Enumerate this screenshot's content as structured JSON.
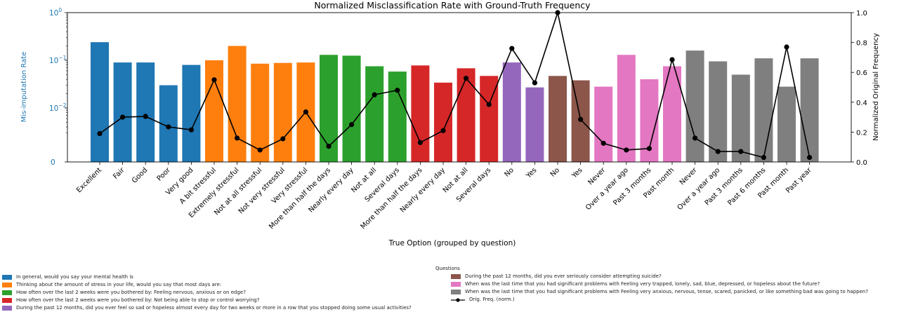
{
  "chart_data": {
    "type": "bar",
    "title": "Normalized Misclassification Rate with Ground-Truth Frequency",
    "xlabel": "True Option (grouped by question)",
    "ylabel": "Mis-imputation Rate",
    "ylabel_right": "Normalized Original Frequency",
    "y_scale": "symlog",
    "yticks": [
      {
        "label": "0",
        "exp": null
      },
      {
        "label": "10",
        "exp": "−2"
      },
      {
        "label": "10",
        "exp": "−1"
      },
      {
        "label": "10",
        "exp": "0"
      }
    ],
    "yticks_right": [
      "0.0",
      "0.2",
      "0.4",
      "0.6",
      "0.8",
      "1.0"
    ],
    "ylim_right": [
      0,
      1
    ],
    "categories": [
      "Excellent",
      "Fair",
      "Good",
      "Poor",
      "Very good",
      "A bit stressful",
      "Extremely stressful",
      "Not at all stressful",
      "Not very stressful",
      "Very stressful",
      "More than half the days",
      "Nearly every day",
      "Not at all",
      "Several days",
      "More than half the days",
      "Nearly every day",
      "Not at all",
      "Several days",
      "No",
      "Yes",
      "No",
      "Yes",
      "Never",
      "Over a year ago",
      "Past 3 months",
      "Past month",
      "Never",
      "Over a year ago",
      "Past 3 months",
      "Past 6 months",
      "Past month",
      "Past year"
    ],
    "groups": [
      0,
      0,
      0,
      0,
      0,
      1,
      1,
      1,
      1,
      1,
      2,
      2,
      2,
      2,
      3,
      3,
      3,
      3,
      4,
      4,
      5,
      5,
      6,
      6,
      6,
      6,
      7,
      7,
      7,
      7,
      7,
      7
    ],
    "misimputation_rate": [
      0.24,
      0.09,
      0.09,
      0.03,
      0.08,
      0.1,
      0.2,
      0.085,
      0.088,
      0.09,
      0.13,
      0.125,
      0.075,
      0.058,
      0.078,
      0.034,
      0.068,
      0.047,
      0.09,
      0.027,
      0.047,
      0.038,
      0.028,
      0.13,
      0.04,
      0.075,
      0.16,
      0.095,
      0.05,
      0.11,
      0.028,
      0.11
    ],
    "orig_freq_norm": [
      0.19,
      0.3,
      0.305,
      0.235,
      0.215,
      0.55,
      0.16,
      0.08,
      0.155,
      0.335,
      0.105,
      0.25,
      0.45,
      0.48,
      0.13,
      0.21,
      0.56,
      0.385,
      0.76,
      0.53,
      1.0,
      0.285,
      0.125,
      0.08,
      0.09,
      0.685,
      0.16,
      0.07,
      0.07,
      0.03,
      0.77,
      0.03
    ],
    "legend_title": "Questions",
    "legend": [
      {
        "label": "In general, would you say your mental health is",
        "color": "#1f77b4"
      },
      {
        "label": "Thinking about the amount of stress in your life, would you say that most days are:",
        "color": "#ff7f0e"
      },
      {
        "label": "How often over the last 2 weeks were you bothered by: Feeling nervous, anxious or on edge?",
        "color": "#2ca02c"
      },
      {
        "label": "How often over the last 2 weeks were you bothered by: Not being able to stop or control worrying?",
        "color": "#d62728"
      },
      {
        "label": "During the past 12 months, did you ever feel so sad or hopeless almost every day for two weeks or more in a row that you stopped doing some usual activities?",
        "color": "#9467bd"
      },
      {
        "label": "During the past 12 months, did you ever seriously consider attempting suicide?",
        "color": "#8c564b"
      },
      {
        "label": "When was the last time that you had significant problems with Feeling very trapped, lonely, sad, blue, depressed, or hopeless about the future?",
        "color": "#e377c2"
      },
      {
        "label": "When was the last time that you had significant problems with Feeling very anxious, nervous, tense, scared, panicked, or like something bad was going to happen?",
        "color": "#7f7f7f"
      }
    ],
    "line_legend": "Orig. Freq. (norm.)",
    "line_color": "#000000",
    "ylabel_color": "#1f77b4"
  }
}
